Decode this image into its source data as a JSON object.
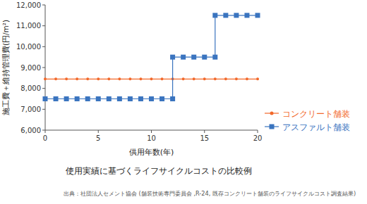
{
  "chart_data": {
    "type": "line",
    "title": "使用実績に基づくライフサイクルコストの比較例",
    "source": "出典：社団法人セメント協会 (舗装技術専門委員会 ,R-24, 既存コンクリート舗装のライフサイクルコスト調査結果)",
    "x_label": "供用年数(年)",
    "y_label": "施工費＋維持管理費(円/m²)",
    "xlim": [
      0,
      20
    ],
    "xticks": [
      0,
      5,
      10,
      15,
      20
    ],
    "ylim": [
      6000,
      12000
    ],
    "yticks": [
      {
        "value": 6000,
        "label": "6,000"
      },
      {
        "value": 7000,
        "label": "7,000"
      },
      {
        "value": 8000,
        "label": "8,000"
      },
      {
        "value": 9000,
        "label": "9,000"
      },
      {
        "value": 10000,
        "label": "10,000"
      },
      {
        "value": 11000,
        "label": "11,000"
      },
      {
        "value": 12000,
        "label": "12,000"
      }
    ],
    "grid": false,
    "legend": "right",
    "series": [
      {
        "name": "コンクリート舗装",
        "color": "#f2682a",
        "marker": "circle",
        "x": [
          0,
          1,
          2,
          3,
          4,
          5,
          6,
          7,
          8,
          9,
          10,
          11,
          12,
          13,
          14,
          15,
          16,
          17,
          18,
          19,
          20
        ],
        "values": [
          8450,
          8450,
          8450,
          8450,
          8450,
          8450,
          8450,
          8450,
          8450,
          8450,
          8450,
          8450,
          8450,
          8450,
          8450,
          8450,
          8450,
          8450,
          8450,
          8450,
          8450
        ]
      },
      {
        "name": "アスファルト舗装",
        "color": "#3a74bf",
        "marker": "square",
        "x": [
          0,
          1,
          2,
          3,
          4,
          5,
          6,
          7,
          8,
          9,
          10,
          11,
          12,
          12,
          13,
          14,
          15,
          16,
          16,
          17,
          18,
          19,
          20
        ],
        "values": [
          7500,
          7500,
          7500,
          7500,
          7500,
          7500,
          7500,
          7500,
          7500,
          7500,
          7500,
          7500,
          7500,
          9500,
          9500,
          9500,
          9500,
          9500,
          11500,
          11500,
          11500,
          11500,
          11500
        ]
      }
    ]
  }
}
